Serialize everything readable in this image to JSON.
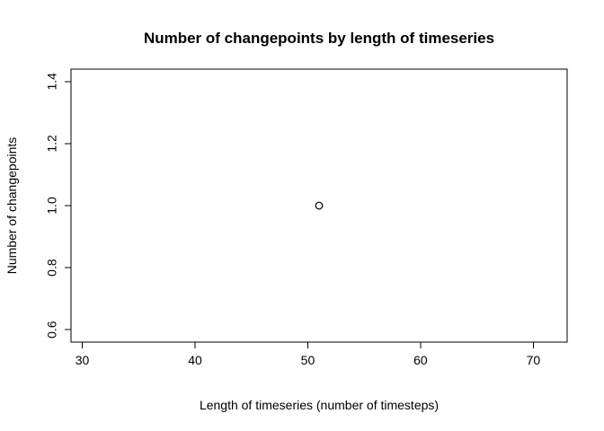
{
  "chart_data": {
    "type": "scatter",
    "title": "Number of changepoints by length of timeseries",
    "xlabel": "Length of timeseries (number of timesteps)",
    "ylabel": "Number of changepoints",
    "xlim": [
      29,
      73
    ],
    "ylim": [
      0.56,
      1.44
    ],
    "x_ticks": [
      30,
      40,
      50,
      60,
      70
    ],
    "y_ticks": [
      0.6,
      0.8,
      1.0,
      1.2,
      1.4
    ],
    "x_tick_labels": [
      "30",
      "40",
      "50",
      "60",
      "70"
    ],
    "y_tick_labels": [
      "0.6",
      "0.8",
      "1.0",
      "1.2",
      "1.4"
    ],
    "points": [
      {
        "x": 51,
        "y": 1.0
      }
    ],
    "grid": false,
    "marker": "open-circle",
    "colors": {
      "axis": "#000000",
      "marker": "#000000",
      "background": "#ffffff"
    }
  }
}
